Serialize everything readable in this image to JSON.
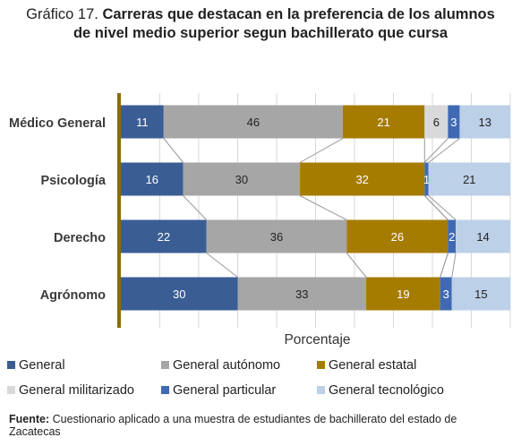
{
  "title": {
    "lead": "Gráfico 17.",
    "main": "Carreras que destacan en la preferencia de los alumnos de nivel medio superior segun bachillerato que cursa"
  },
  "chart_data": {
    "type": "bar",
    "orientation": "horizontal",
    "stacked": "percent",
    "title": "Gráfico 17. Carreras que destacan en la preferencia de los alumnos de nivel medio superior segun bachillerato que cursa",
    "xlabel": "Porcentaje",
    "ylabel": "",
    "xlim": [
      0,
      100
    ],
    "grid": true,
    "legend_position": "bottom",
    "series_lines": true,
    "categories": [
      "Médico General",
      "Psicología",
      "Derecho",
      "Agrónomo"
    ],
    "series": [
      {
        "name": "General",
        "color": "#3A5E94",
        "label_color": "#ffffff",
        "values": [
          11,
          16,
          22,
          30
        ]
      },
      {
        "name": "General autónomo",
        "color": "#A6A6A6",
        "label_color": "#222222",
        "values": [
          46,
          30,
          36,
          33
        ]
      },
      {
        "name": "General estatal",
        "color": "#A67C00",
        "label_color": "#ffffff",
        "values": [
          21,
          32,
          26,
          19
        ]
      },
      {
        "name": "General militarizado",
        "color": "#D9D9D9",
        "label_color": "#222222",
        "values": [
          6,
          0,
          0,
          0
        ]
      },
      {
        "name": "General particular",
        "color": "#3F69B3",
        "label_color": "#ffffff",
        "values": [
          3,
          1,
          2,
          3
        ]
      },
      {
        "name": "General tecnológico",
        "color": "#BCD0E8",
        "label_color": "#222222",
        "values": [
          13,
          21,
          14,
          15
        ]
      }
    ]
  },
  "source": {
    "label": "Fuente:",
    "text": " Cuestionario aplicado a una muestra de estudiantes de bachillerato del estado de Zacatecas"
  }
}
